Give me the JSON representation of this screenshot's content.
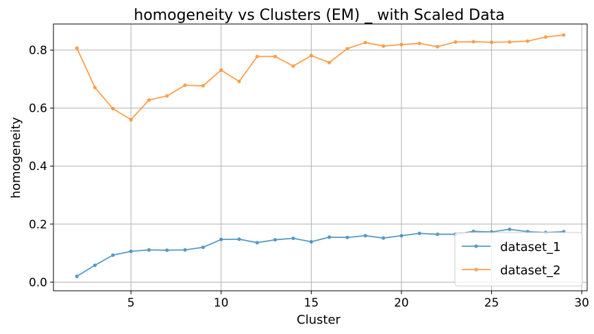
{
  "chart_data": {
    "type": "line",
    "title": "homogeneity vs Clusters (EM) _ with Scaled Data",
    "xlabel": "Cluster",
    "ylabel": "homogeneity",
    "xlim": [
      0.7,
      30.3
    ],
    "ylim": [
      -0.03,
      0.89
    ],
    "xticks": [
      5,
      10,
      15,
      20,
      25,
      30
    ],
    "yticks": [
      0.0,
      0.2,
      0.4,
      0.6,
      0.8
    ],
    "xtick_labels": [
      "5",
      "10",
      "15",
      "20",
      "25",
      "30"
    ],
    "ytick_labels": [
      "0.0",
      "0.2",
      "0.4",
      "0.6",
      "0.8"
    ],
    "grid": true,
    "legend_position": "lower-right",
    "x": [
      2,
      3,
      4,
      5,
      6,
      7,
      8,
      9,
      10,
      11,
      12,
      13,
      14,
      15,
      16,
      17,
      18,
      19,
      20,
      21,
      22,
      23,
      24,
      25,
      26,
      27,
      28,
      29
    ],
    "series": [
      {
        "name": "dataset_1",
        "color": "#1f77b4",
        "values": [
          0.02,
          0.058,
          0.093,
          0.106,
          0.111,
          0.11,
          0.111,
          0.12,
          0.147,
          0.148,
          0.136,
          0.146,
          0.151,
          0.139,
          0.155,
          0.154,
          0.16,
          0.152,
          0.16,
          0.168,
          0.165,
          0.165,
          0.175,
          0.173,
          0.182,
          0.174,
          0.171,
          0.174
        ]
      },
      {
        "name": "dataset_2",
        "color": "#ff7f0e",
        "values": [
          0.807,
          0.671,
          0.598,
          0.56,
          0.628,
          0.642,
          0.679,
          0.677,
          0.731,
          0.692,
          0.778,
          0.778,
          0.745,
          0.781,
          0.757,
          0.805,
          0.826,
          0.814,
          0.819,
          0.823,
          0.812,
          0.828,
          0.829,
          0.827,
          0.828,
          0.831,
          0.845,
          0.852
        ]
      }
    ]
  }
}
